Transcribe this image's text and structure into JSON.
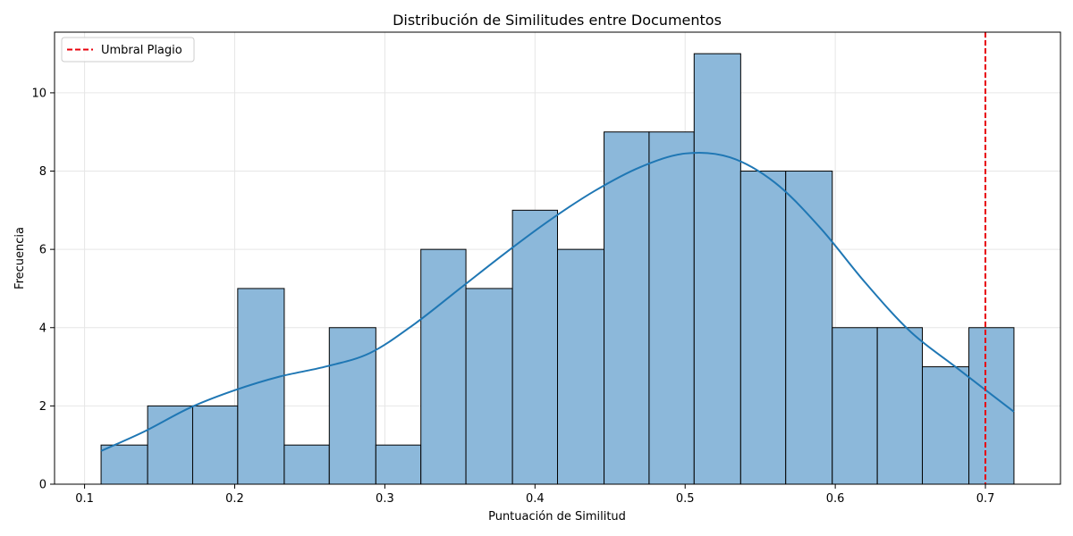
{
  "chart_data": {
    "type": "bar",
    "title": "Distribución de Similitudes entre Documentos",
    "xlabel": "Puntuación de Similitud",
    "ylabel": "Frecuencia",
    "xlim": [
      0.08,
      0.75
    ],
    "ylim": [
      0,
      11.55
    ],
    "xticks": [
      0.1,
      0.2,
      0.3,
      0.4,
      0.5,
      0.6,
      0.7
    ],
    "xtick_labels": [
      "0.1",
      "0.2",
      "0.3",
      "0.4",
      "0.5",
      "0.6",
      "0.7"
    ],
    "yticks": [
      0,
      2,
      4,
      6,
      8,
      10
    ],
    "ytick_labels": [
      "0",
      "2",
      "4",
      "6",
      "8",
      "10"
    ],
    "grid": true,
    "bins": [
      [
        0.111,
        0.142,
        1
      ],
      [
        0.142,
        0.172,
        2
      ],
      [
        0.172,
        0.202,
        2
      ],
      [
        0.202,
        0.233,
        5
      ],
      [
        0.233,
        0.263,
        1
      ],
      [
        0.263,
        0.294,
        4
      ],
      [
        0.294,
        0.324,
        1
      ],
      [
        0.324,
        0.354,
        6
      ],
      [
        0.354,
        0.385,
        5
      ],
      [
        0.385,
        0.415,
        7
      ],
      [
        0.415,
        0.446,
        6
      ],
      [
        0.446,
        0.476,
        9
      ],
      [
        0.476,
        0.506,
        9
      ],
      [
        0.506,
        0.537,
        11
      ],
      [
        0.537,
        0.567,
        8
      ],
      [
        0.567,
        0.598,
        8
      ],
      [
        0.598,
        0.628,
        4
      ],
      [
        0.628,
        0.658,
        4
      ],
      [
        0.658,
        0.689,
        3
      ],
      [
        0.689,
        0.719,
        4
      ]
    ],
    "kde": {
      "x": [
        0.111,
        0.14,
        0.17,
        0.2,
        0.23,
        0.26,
        0.29,
        0.32,
        0.35,
        0.38,
        0.41,
        0.44,
        0.47,
        0.5,
        0.53,
        0.56,
        0.59,
        0.62,
        0.65,
        0.68,
        0.719
      ],
      "y": [
        0.85,
        1.35,
        1.95,
        2.4,
        2.75,
        3.0,
        3.35,
        4.1,
        5.0,
        5.9,
        6.75,
        7.5,
        8.1,
        8.45,
        8.35,
        7.7,
        6.55,
        5.15,
        3.9,
        3.0,
        1.85
      ]
    },
    "threshold": {
      "x": 0.7,
      "label": "Umbral Plagio"
    },
    "legend_position": "top-left",
    "colors": {
      "bar_fill": "#8cb8da",
      "bar_edge": "#000000",
      "kde_line": "#1f77b4",
      "threshold_line": "#e8000b",
      "grid": "#e6e6e6"
    }
  }
}
